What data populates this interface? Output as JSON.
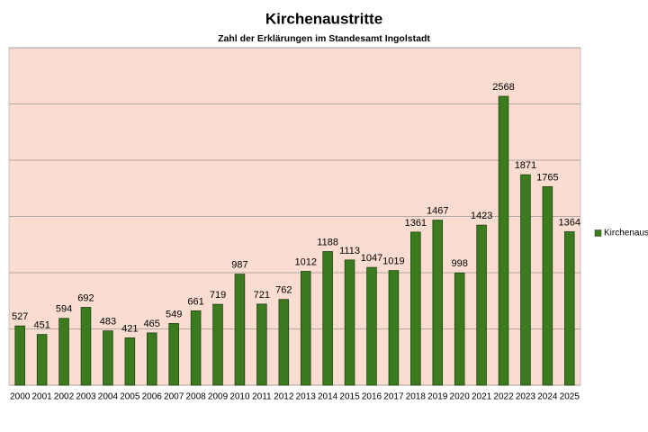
{
  "chart_data": {
    "type": "bar",
    "title": "Kirchenaustritte",
    "subtitle": "Zahl der Erklärungen im Standesamt Ingolstadt",
    "categories": [
      "2000",
      "2001",
      "2002",
      "2003",
      "2004",
      "2005",
      "2006",
      "2007",
      "2008",
      "2009",
      "2010",
      "2011",
      "2012",
      "2013",
      "2014",
      "2015",
      "2016",
      "2017",
      "2018",
      "2019",
      "2020",
      "2021",
      "2022",
      "2023",
      "2024",
      "2025"
    ],
    "series": [
      {
        "name": "Kirchenaustritte",
        "color": "#3b7a1e",
        "values": [
          527,
          451,
          594,
          692,
          483,
          421,
          465,
          549,
          661,
          719,
          987,
          721,
          762,
          1012,
          1188,
          1113,
          1047,
          1019,
          1361,
          1467,
          998,
          1423,
          2568,
          1871,
          1765,
          1364
        ]
      }
    ],
    "ylim": [
      0,
      3000
    ],
    "yticks": [
      0,
      500,
      1000,
      1500,
      2000,
      2500,
      3000
    ],
    "grid": true,
    "background": "#fadcd0",
    "legend": "right"
  }
}
